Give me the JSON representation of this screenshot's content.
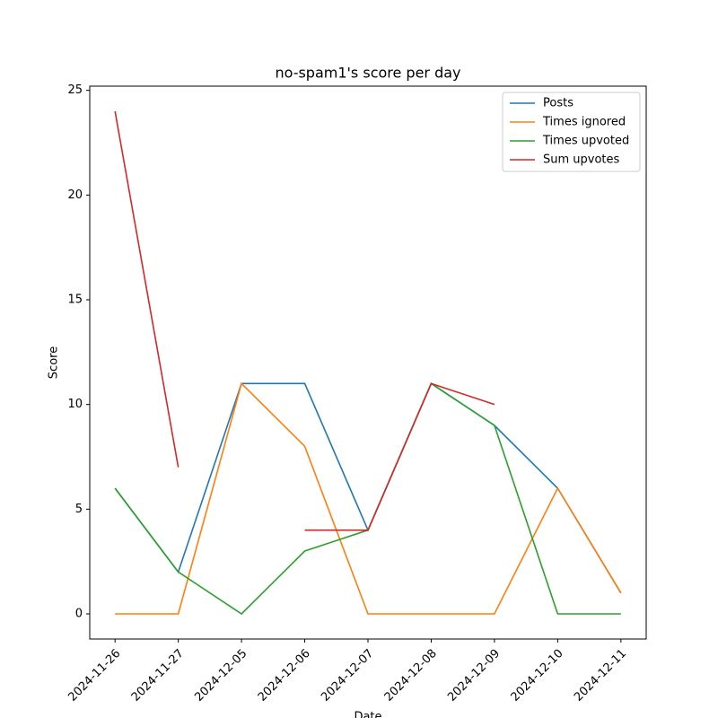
{
  "chart_data": {
    "type": "line",
    "title": "no-spam1's score per day",
    "x_label": "Date",
    "y_label": "Score",
    "categories": [
      "2024-11-26",
      "2024-11-27",
      "2024-12-05",
      "2024-12-06",
      "2024-12-07",
      "2024-12-08",
      "2024-12-09",
      "2024-12-10",
      "2024-12-11"
    ],
    "series": [
      {
        "name": "Posts",
        "color": "#1f77b4",
        "values": [
          6,
          2,
          11,
          11,
          4,
          11,
          9,
          6,
          1
        ]
      },
      {
        "name": "Times ignored",
        "color": "#ff7f0e",
        "values": [
          0,
          0,
          11,
          8,
          0,
          0,
          0,
          6,
          1
        ]
      },
      {
        "name": "Times upvoted",
        "color": "#2ca02c",
        "values": [
          6,
          2,
          0,
          3,
          4,
          11,
          9,
          0,
          0
        ]
      },
      {
        "name": "Sum upvotes",
        "color": "#d62728",
        "values": [
          24,
          7,
          null,
          4,
          4,
          11,
          10,
          null,
          null
        ]
      }
    ],
    "ylim": [
      -1.2,
      25.2
    ],
    "yticks": [
      0,
      5,
      10,
      15,
      20,
      25
    ],
    "legend": "upper right"
  }
}
